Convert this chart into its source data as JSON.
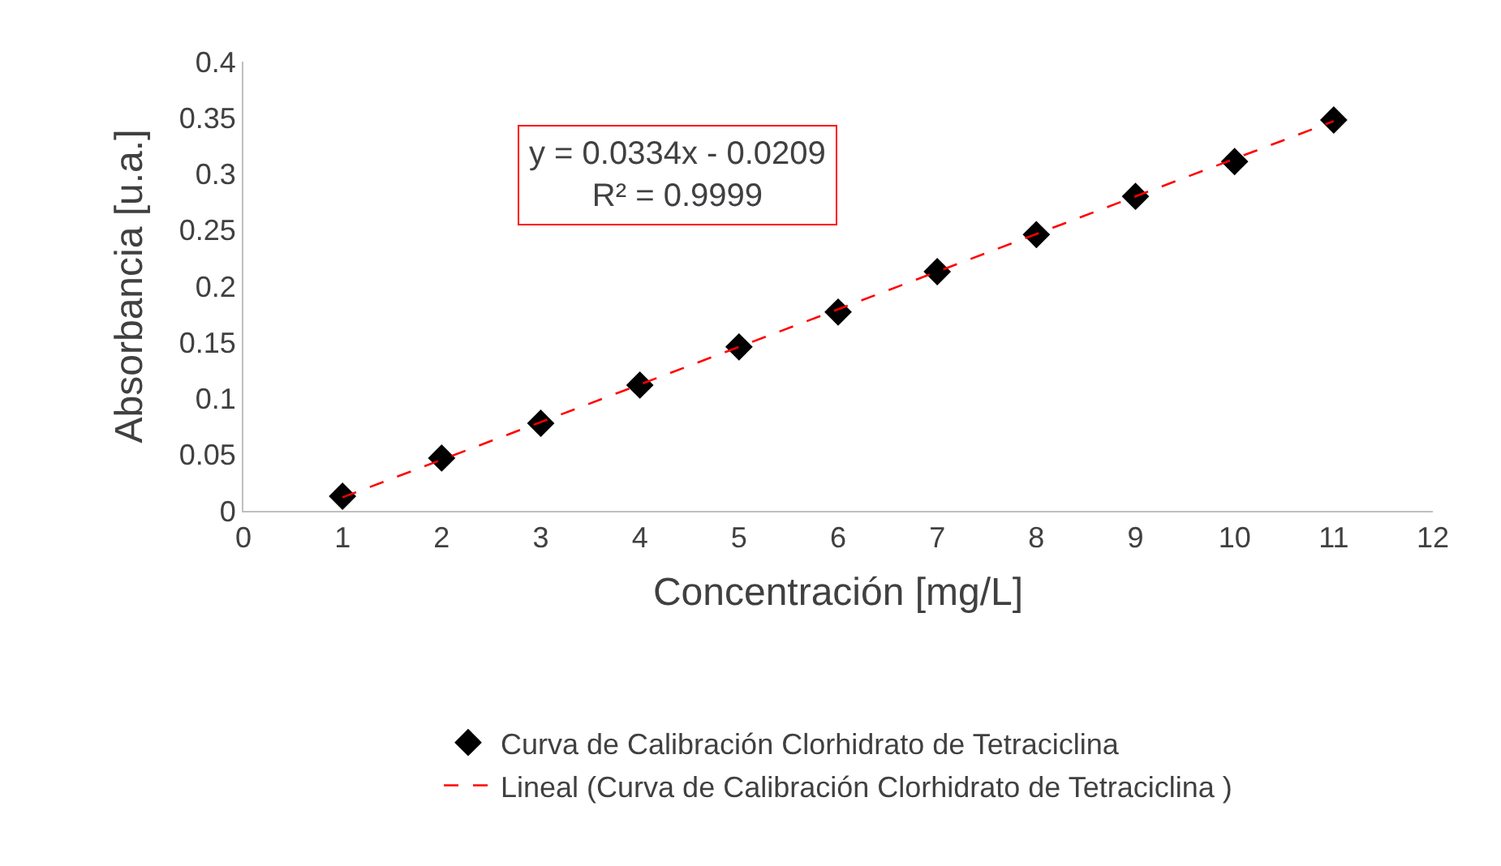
{
  "chart_data": {
    "type": "scatter",
    "xlabel": "Concentración [mg/L]",
    "ylabel": "Absorbancia [u.a.]",
    "xlim": [
      0,
      12
    ],
    "xticks": [
      0,
      1,
      2,
      3,
      4,
      5,
      6,
      7,
      8,
      9,
      10,
      11,
      12
    ],
    "ylim": [
      0,
      0.4
    ],
    "yticks": [
      0,
      0.05,
      0.1,
      0.15,
      0.2,
      0.25,
      0.3,
      0.35,
      0.4
    ],
    "legend": "bottom",
    "series": [
      {
        "name": "Curva de Calibración Clorhidrato de Tetraciclina",
        "color": "#000000",
        "marker": "diamond",
        "x": [
          1,
          2,
          3,
          4,
          5,
          6,
          7,
          8,
          9,
          10,
          11
        ],
        "values": [
          0.013,
          0.047,
          0.078,
          0.112,
          0.146,
          0.177,
          0.213,
          0.246,
          0.28,
          0.311,
          0.348
        ]
      },
      {
        "name": "Lineal (Curva de Calibración Clorhidrato de Tetraciclina )",
        "color": "#ff0000",
        "type": "line",
        "marker": "none",
        "line_style": "dashed",
        "x": [
          1,
          11
        ],
        "values": [
          0.012,
          0.347
        ]
      }
    ],
    "annotations": [
      "y = 0.0334x - 0.0209\nR² = 0.9999"
    ]
  }
}
